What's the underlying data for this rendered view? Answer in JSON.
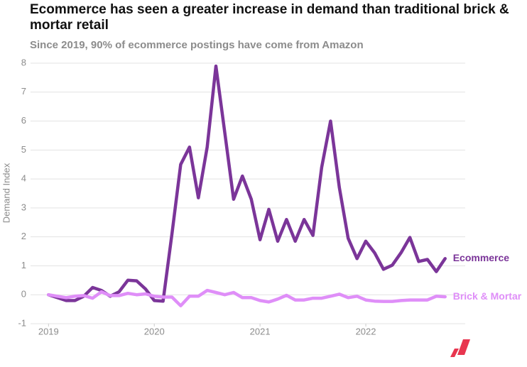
{
  "chart_data": {
    "type": "line",
    "title": "Ecommerce has seen a greater increase in demand than traditional brick & mortar retail",
    "subtitle": "Since 2019, 90% of ecommerce postings have come from Amazon",
    "y_label": "Demand Index",
    "x": [
      2019,
      2019.083,
      2019.167,
      2019.25,
      2019.333,
      2019.417,
      2019.5,
      2019.583,
      2019.667,
      2019.75,
      2019.833,
      2019.917,
      2020,
      2020.083,
      2020.167,
      2020.25,
      2020.333,
      2020.417,
      2020.5,
      2020.583,
      2020.667,
      2020.75,
      2020.833,
      2020.917,
      2021,
      2021.083,
      2021.167,
      2021.25,
      2021.333,
      2021.417,
      2021.5,
      2021.583,
      2021.667,
      2021.75,
      2021.833,
      2021.917,
      2022,
      2022.083,
      2022.167,
      2022.25,
      2022.333,
      2022.417,
      2022.5,
      2022.583,
      2022.667,
      2022.75
    ],
    "series": [
      {
        "name": "Ecommerce",
        "color": "#7b3599",
        "values": [
          0,
          -0.1,
          -0.2,
          -0.2,
          -0.05,
          0.25,
          0.15,
          -0.05,
          0.1,
          0.5,
          0.48,
          0.2,
          -0.2,
          -0.22,
          2.1,
          4.5,
          5.1,
          3.35,
          5.1,
          7.9,
          5.6,
          3.3,
          4.1,
          3.3,
          1.9,
          2.95,
          1.85,
          2.6,
          1.85,
          2.6,
          2.05,
          4.4,
          6.0,
          3.7,
          1.95,
          1.25,
          1.85,
          1.45,
          0.88,
          1.02,
          1.45,
          1.98,
          1.15,
          1.22,
          0.8,
          1.25
        ]
      },
      {
        "name": "Brick & Mortar",
        "color": "#df8ef8",
        "values": [
          0,
          -0.05,
          -0.1,
          -0.05,
          -0.03,
          -0.12,
          0.1,
          -0.03,
          -0.03,
          0.05,
          0,
          0.03,
          -0.05,
          -0.08,
          -0.08,
          -0.38,
          -0.05,
          -0.05,
          0.15,
          0.08,
          0,
          0.08,
          -0.1,
          -0.1,
          -0.2,
          -0.25,
          -0.15,
          -0.02,
          -0.18,
          -0.18,
          -0.12,
          -0.12,
          -0.05,
          0.02,
          -0.1,
          -0.05,
          -0.18,
          -0.22,
          -0.23,
          -0.23,
          -0.2,
          -0.18,
          -0.18,
          -0.18,
          -0.05,
          -0.07
        ]
      }
    ],
    "xlim": [
      2018.83,
      2022.94
    ],
    "xticks": [
      2019,
      2020,
      2021,
      2022
    ],
    "ylim": [
      -1,
      8
    ],
    "yticks": [
      -1,
      0,
      1,
      2,
      3,
      4,
      5,
      6,
      7,
      8
    ],
    "grid": true
  }
}
